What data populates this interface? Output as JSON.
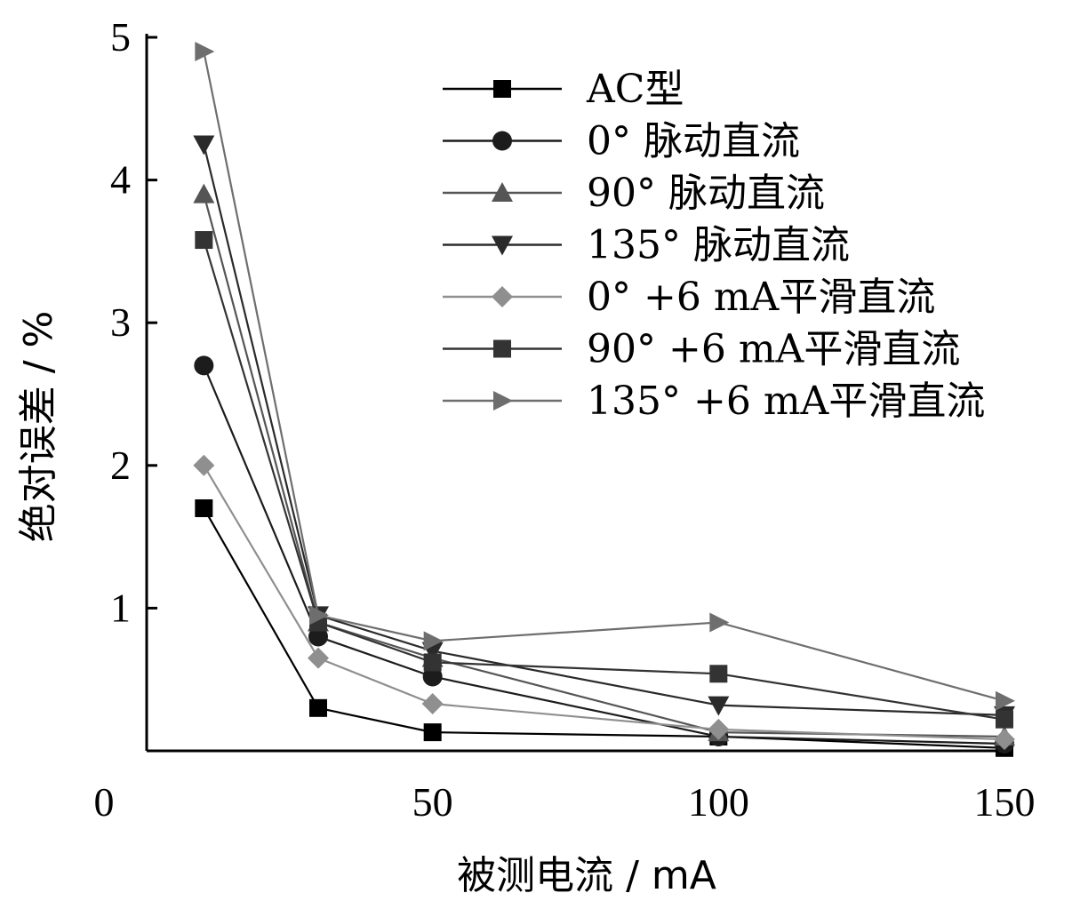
{
  "chart_data": {
    "type": "line",
    "xlabel": "被测电流 / mA",
    "ylabel": "绝对误差 / %",
    "xlim": [
      0,
      150
    ],
    "ylim": [
      0,
      5
    ],
    "x_ticks": [
      "0",
      "50",
      "100",
      "150"
    ],
    "y_ticks": [
      "1",
      "2",
      "3",
      "4",
      "5"
    ],
    "x": [
      10,
      30,
      50,
      100,
      150
    ],
    "grid": false,
    "legend_position": "top-right",
    "series": [
      {
        "name": "AC型",
        "marker": "square",
        "color": "#000000",
        "values": [
          1.7,
          0.3,
          0.13,
          0.1,
          0.02
        ]
      },
      {
        "name": "0° 脉动直流",
        "marker": "circle",
        "color": "#1c1c1c",
        "values": [
          2.7,
          0.8,
          0.52,
          0.1,
          0.05
        ]
      },
      {
        "name": "90° 脉动直流",
        "marker": "triangle-up",
        "color": "#555555",
        "values": [
          3.9,
          0.9,
          0.65,
          0.13,
          0.1
        ]
      },
      {
        "name": "135° 脉动直流",
        "marker": "triangle-down",
        "color": "#2a2a2a",
        "values": [
          4.25,
          0.95,
          0.7,
          0.32,
          0.25
        ]
      },
      {
        "name": "0° +6 mA平滑直流",
        "marker": "diamond",
        "color": "#8f8f8f",
        "values": [
          2.0,
          0.65,
          0.33,
          0.15,
          0.08
        ]
      },
      {
        "name": "90° +6 mA平滑直流",
        "marker": "square",
        "color": "#333333",
        "values": [
          3.58,
          0.9,
          0.62,
          0.54,
          0.22
        ]
      },
      {
        "name": "135° +6 mA平滑直流",
        "marker": "triangle-right",
        "color": "#6e6e6e",
        "values": [
          4.9,
          0.95,
          0.77,
          0.9,
          0.35
        ]
      }
    ]
  }
}
